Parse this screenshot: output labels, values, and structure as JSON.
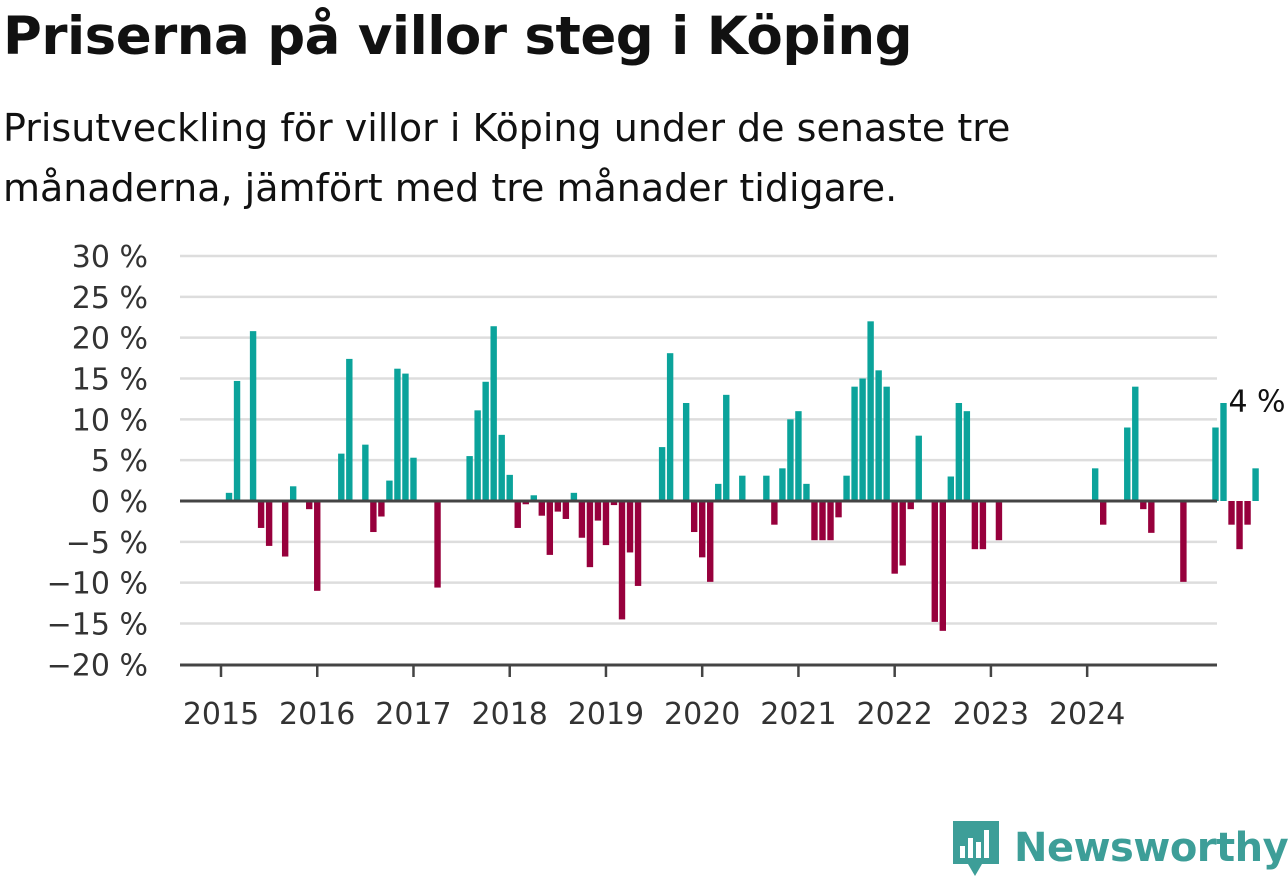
{
  "header": {
    "title": "Priserna på villor steg i Köping",
    "subtitle": "Prisutveckling för villor i Köping under de senaste tre månaderna, jämfört med tre månader tidigare."
  },
  "brand": {
    "name": "Newsworthy",
    "logo_icon": "bar-chart-speech-bubble-icon",
    "color": "#3d9e98"
  },
  "colors": {
    "positive": "#0ba39b",
    "negative": "#97003c",
    "grid": "#dddddd",
    "axis": "#444444"
  },
  "chart_data": {
    "type": "bar",
    "ylim": [
      -20,
      30
    ],
    "yticks": [
      30,
      25,
      20,
      15,
      10,
      5,
      0,
      -5,
      -10,
      -15,
      -20
    ],
    "ytick_labels": [
      "30 %",
      "25 %",
      "20 %",
      "15 %",
      "10 %",
      "5 %",
      "0 %",
      "−5 %",
      "−10 %",
      "−15 %",
      "−20 %"
    ],
    "x_start": "2015-01",
    "xtick_labels": [
      "2015",
      "2016",
      "2017",
      "2018",
      "2019",
      "2020",
      "2021",
      "2022",
      "2023",
      "2024"
    ],
    "annotation": {
      "text": "4 %",
      "value": 4,
      "target": "last"
    },
    "values": [
      0,
      1,
      14.7,
      0,
      20.8,
      -3.3,
      -5.5,
      0,
      -6.8,
      1.8,
      0,
      -1.0,
      -11.0,
      0,
      0,
      5.8,
      17.4,
      0,
      6.9,
      -3.8,
      -1.9,
      2.5,
      16.2,
      15.6,
      5.3,
      0,
      0,
      -10.6,
      0,
      0,
      0,
      5.5,
      11.1,
      14.6,
      21.4,
      8.1,
      3.2,
      -3.3,
      -0.4,
      0.7,
      -1.8,
      -6.6,
      -1.3,
      -2.2,
      1.0,
      -4.5,
      -8.1,
      -2.4,
      -5.4,
      -0.5,
      -14.5,
      -6.3,
      -10.4,
      0,
      0,
      6.6,
      18.1,
      0,
      12.0,
      -3.8,
      -6.9,
      -9.9,
      2.1,
      13.0,
      0,
      3.1,
      0,
      0,
      3.1,
      -2.9,
      4.0,
      10.0,
      11.0,
      2.1,
      -4.8,
      -4.8,
      -4.8,
      -2.0,
      3.1,
      14.0,
      15.0,
      22.0,
      16.0,
      14.0,
      -8.9,
      -7.9,
      -1.0,
      8.0,
      0,
      -14.8,
      -15.9,
      3.0,
      12.0,
      11.0,
      -5.9,
      -5.9,
      0,
      -4.8,
      0,
      0,
      0,
      0,
      0,
      0,
      0,
      0,
      0,
      0,
      0,
      4.0,
      -2.9,
      0,
      0,
      9.0,
      14.0,
      -1.0,
      -3.9,
      0,
      0,
      0,
      -9.9,
      0,
      0,
      0,
      9.0,
      12.0,
      -2.9,
      -5.9,
      -2.9,
      4.0
    ]
  }
}
